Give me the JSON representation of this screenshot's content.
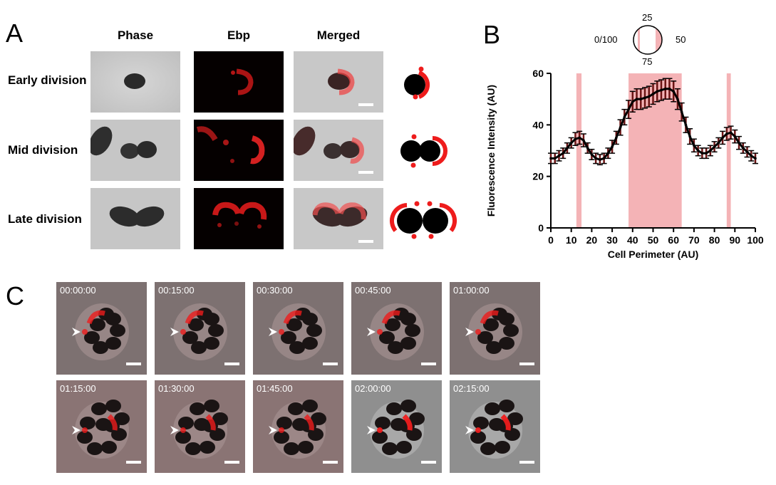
{
  "figure": {
    "panel_a": {
      "letter": "A",
      "columns": [
        "Phase",
        "Ebp",
        "Merged"
      ],
      "rows": [
        "Early division",
        "Mid division",
        "Late division"
      ]
    },
    "panel_b": {
      "letter": "B",
      "inset_labels": {
        "top": "25",
        "left": "0/100",
        "right": "50",
        "bottom": "75"
      }
    },
    "panel_c": {
      "letter": "C",
      "timestamps": [
        "00:00:00",
        "00:15:00",
        "00:30:00",
        "00:45:00",
        "01:00:00",
        "01:15:00",
        "01:30:00",
        "01:45:00",
        "02:00:00",
        "02:15:00"
      ]
    }
  },
  "colors": {
    "ebp_red": "#ee1c1c",
    "highlight_pink": "#f4b3b6",
    "phase_gray": "#c4c4c4"
  },
  "chart_data": {
    "type": "line",
    "title": "",
    "xlabel": "Cell Perimeter (AU)",
    "ylabel": "Fluorescence Intensity (AU)",
    "xlim": [
      0,
      100
    ],
    "ylim": [
      0,
      60
    ],
    "xticks": [
      0,
      10,
      20,
      30,
      40,
      50,
      60,
      70,
      80,
      90,
      100
    ],
    "yticks": [
      0,
      20,
      40,
      60
    ],
    "highlight_bands": [
      [
        12.5,
        15
      ],
      [
        38,
        64
      ],
      [
        86,
        88
      ]
    ],
    "series": [
      {
        "x": [
          0,
          2,
          4,
          6,
          8,
          10,
          12,
          14,
          16,
          18,
          20,
          22,
          24,
          26,
          28,
          30,
          32,
          34,
          36,
          38,
          40,
          42,
          44,
          46,
          48,
          50,
          52,
          54,
          56,
          58,
          60,
          62,
          64,
          66,
          68,
          70,
          72,
          74,
          76,
          78,
          80,
          82,
          84,
          86,
          88,
          90,
          92,
          94,
          96,
          98,
          100
        ],
        "y": [
          27,
          27,
          28,
          29,
          31,
          33,
          34.5,
          35,
          34,
          31,
          28.5,
          27,
          26.5,
          27,
          29,
          31.5,
          35,
          39,
          43,
          46,
          49,
          50,
          50,
          50.5,
          51,
          52,
          53,
          53.5,
          54,
          54,
          53,
          50,
          45,
          40,
          35.5,
          32,
          30,
          29,
          29,
          30,
          31.5,
          33,
          35,
          36.5,
          37,
          35.5,
          33,
          31,
          29.5,
          28,
          27
        ],
        "err": [
          2,
          2,
          2,
          2,
          2,
          2,
          2.5,
          2.5,
          2.5,
          2,
          2,
          2,
          2,
          2,
          2,
          2.5,
          2.5,
          3,
          3,
          3.5,
          4,
          4,
          4,
          4,
          4,
          4,
          4,
          4,
          4,
          4,
          4,
          4,
          3.5,
          3,
          3,
          2.5,
          2,
          2,
          2,
          2,
          2,
          2,
          2.5,
          2.5,
          2.5,
          2.5,
          2.5,
          2,
          2,
          2,
          2
        ]
      }
    ]
  }
}
